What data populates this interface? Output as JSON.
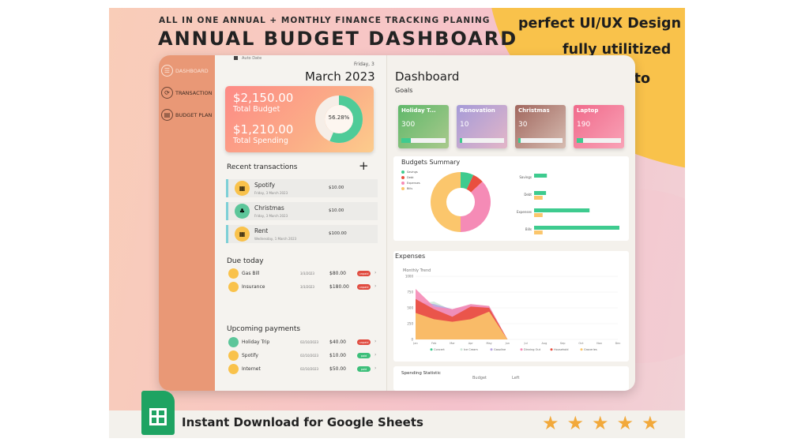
{
  "banner": {
    "subtitle": "ALL IN ONE ANNUAL + MONTHLY FINANCE TRACKING PLANING",
    "title": "ANNUAL BUDGET DASHBOARD",
    "promo": [
      "perfect UI/UX Design",
      "fully utilitized",
      "Easy to use!"
    ],
    "download_text": "Instant Download for Google Sheets",
    "sheets_icon": "google-sheets-icon",
    "stars": [
      "★",
      "★",
      "★",
      "★",
      "★"
    ]
  },
  "colors": {
    "sidebar": "#e99876",
    "accent_yellow": "#f9c24b",
    "green": "#3ecb8f",
    "coral": "#fd8a86"
  },
  "sidebar": {
    "items": [
      {
        "label": "DASHBOARD",
        "icon": "dashboard-icon",
        "glyph": "☰",
        "active": true
      },
      {
        "label": "TRANSACTION",
        "icon": "transaction-icon",
        "glyph": "⟳",
        "active": false
      },
      {
        "label": "BUDGET PLAN",
        "icon": "budget-plan-icon",
        "glyph": "▤",
        "active": false
      }
    ]
  },
  "panel": {
    "auto_date_label": "Auto Date",
    "weekday": "Friday, 3",
    "month": "March 2023",
    "summary": {
      "budget_amount": "$2,150.00",
      "budget_label": "Total Budget",
      "spending_amount": "$1,210.00",
      "spending_label": "Total Spending",
      "percent": "56.28%",
      "percent_value": 56.28
    },
    "recent_title": "Recent transactions",
    "add_glyph": "+",
    "transactions": [
      {
        "name": "Spotify",
        "date": "Friday, 3 March 2023",
        "amount": "$10.00",
        "icon": "receipt-icon",
        "glyph": "▦",
        "color": "#f9c24b"
      },
      {
        "name": "Christmas",
        "date": "Friday, 3 March 2023",
        "amount": "$10.00",
        "icon": "piggy-bank-icon",
        "glyph": "♣",
        "color": "#5cc69a"
      },
      {
        "name": "Rent",
        "date": "Wednesday, 1 March 2023",
        "amount": "$100.00",
        "icon": "receipt-icon",
        "glyph": "▦",
        "color": "#f9c24b"
      }
    ],
    "due_title": "Due today",
    "due": [
      {
        "name": "Gas Bill",
        "date": "3/3/2023",
        "amount": "$80.00",
        "status": "unpaid",
        "color": "red"
      },
      {
        "name": "Insurance",
        "date": "3/3/2023",
        "amount": "$180.00",
        "status": "unpaid",
        "color": "red"
      }
    ],
    "upcoming_title": "Upcoming payments",
    "upcoming": [
      {
        "name": "Holiday Trip",
        "date": "02/10/2023",
        "amount": "$40.00",
        "status": "unpaid",
        "color": "red",
        "green_icon": true
      },
      {
        "name": "Spotify",
        "date": "02/10/2023",
        "amount": "$10.00",
        "status": "paid",
        "color": "green",
        "green_icon": false
      },
      {
        "name": "Internet",
        "date": "02/10/2023",
        "amount": "$50.00",
        "status": "paid",
        "color": "green",
        "green_icon": false
      }
    ],
    "chevron": "›"
  },
  "dashboard": {
    "title": "Dashboard",
    "goals_label": "Goals",
    "goals": [
      {
        "name": "Holiday T...",
        "value": "300",
        "progress": 0.22,
        "gradient": "linear-gradient(135deg,#5fb86a,#a9c98c)"
      },
      {
        "name": "Renovation",
        "value": "10",
        "progress": 0.05,
        "gradient": "linear-gradient(135deg,#a59bd8,#e3b6c8)"
      },
      {
        "name": "Christmas",
        "value": "30",
        "progress": 0.05,
        "gradient": "linear-gradient(135deg,#a1675e,#d6bcb1)"
      },
      {
        "name": "Laptop",
        "value": "190",
        "progress": 0.15,
        "gradient": "linear-gradient(135deg,#f06a8b,#f9a3b7)"
      }
    ],
    "budget_summary_title": "Budgets Summary",
    "expenses_title": "Expenses",
    "monthly_trend_label": "Monthly Trend",
    "spending_stat_title": "Spending Statistic",
    "spending_cols": [
      "Budget",
      "Left"
    ]
  },
  "chart_data": [
    {
      "type": "pie",
      "title": "Budgets Summary",
      "labels": [
        "Savings",
        "Debt",
        "Expenses",
        "Bills"
      ],
      "values": [
        7,
        6,
        37,
        50
      ],
      "colors": [
        "#3ecb8f",
        "#e94f3f",
        "#f58bb6",
        "#fbc66c"
      ]
    },
    {
      "type": "bar",
      "orientation": "horizontal",
      "categories": [
        "Savings",
        "Debt",
        "Expenses",
        "Bills"
      ],
      "series": [
        {
          "values": [
            15,
            14,
            65,
            100
          ],
          "color": "#3ecb8f"
        },
        {
          "values": [
            0,
            10,
            10,
            10
          ],
          "color": "#fbc66c"
        }
      ]
    },
    {
      "type": "area",
      "title": "Monthly Trend",
      "x": [
        "Jan",
        "Feb",
        "Mar",
        "Apr",
        "May",
        "Jun",
        "Jul",
        "Aug",
        "Sep",
        "Oct",
        "Nov",
        "Dec"
      ],
      "ylim": [
        0,
        1000
      ],
      "yticks": [
        0,
        250,
        500,
        750,
        1000
      ],
      "series": [
        {
          "name": "Concert",
          "values": [
            520,
            520,
            410,
            480,
            440,
            0,
            0,
            0,
            0,
            0,
            0,
            0
          ],
          "color": "#3ecb8f"
        },
        {
          "name": "Ice Cream",
          "values": [
            560,
            600,
            460,
            560,
            530,
            0,
            0,
            0,
            0,
            0,
            0,
            0
          ],
          "color": "#cfe8d9"
        },
        {
          "name": "Gasoline",
          "values": [
            600,
            560,
            480,
            540,
            520,
            0,
            0,
            0,
            0,
            0,
            0,
            0
          ],
          "color": "#b8a6e0"
        },
        {
          "name": "Dinning Out",
          "values": [
            800,
            520,
            480,
            560,
            530,
            0,
            0,
            0,
            0,
            0,
            0,
            0
          ],
          "color": "#f58bb6"
        },
        {
          "name": "Household",
          "values": [
            640,
            480,
            360,
            520,
            500,
            0,
            0,
            0,
            0,
            0,
            0,
            0
          ],
          "color": "#e94f3f"
        },
        {
          "name": "Groceries",
          "values": [
            420,
            320,
            280,
            320,
            440,
            0,
            0,
            0,
            0,
            0,
            0,
            0
          ],
          "color": "#fbc66c"
        }
      ]
    }
  ]
}
